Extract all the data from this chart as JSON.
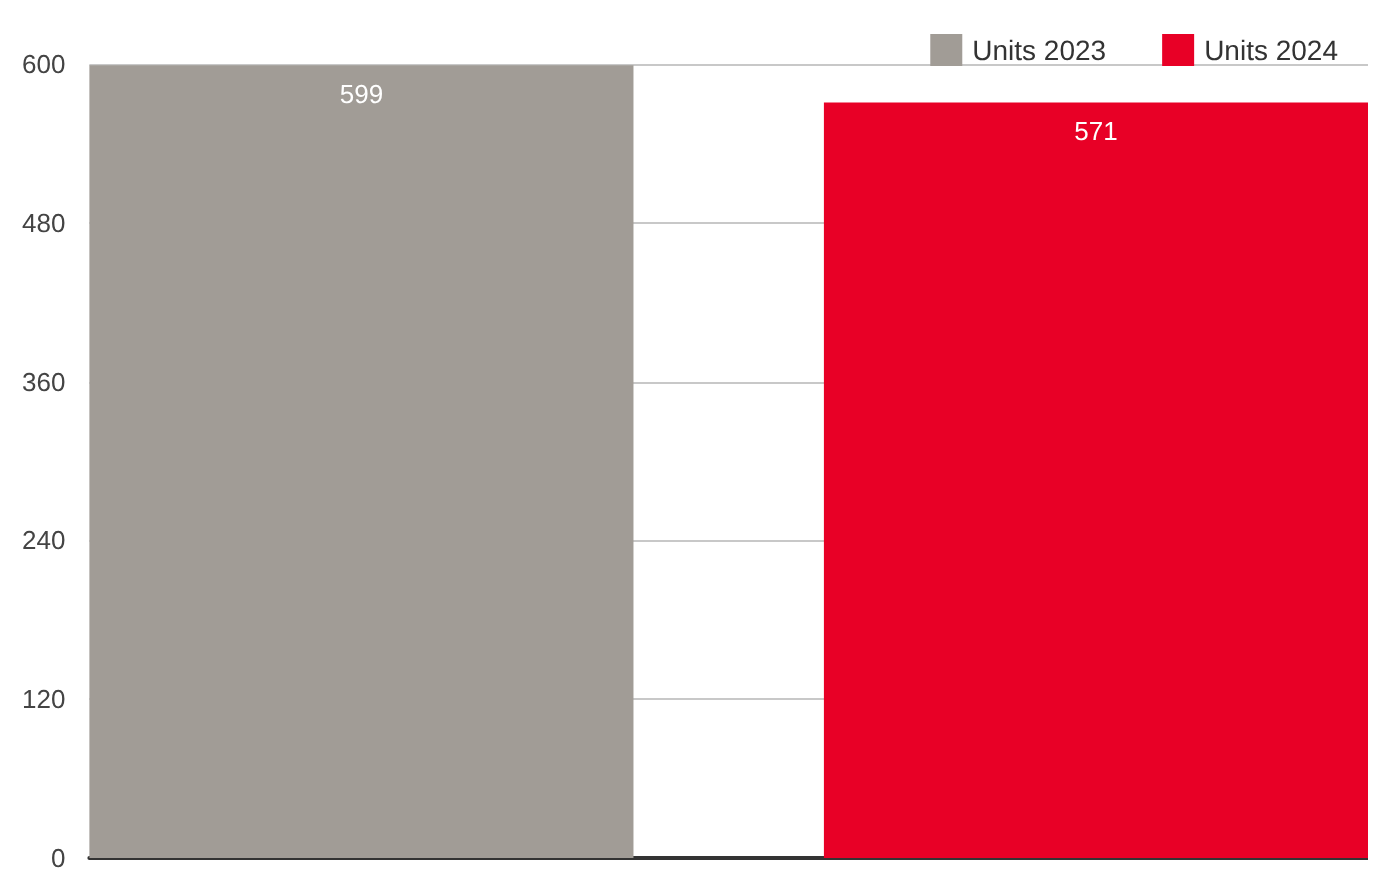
{
  "chart_data": {
    "type": "bar",
    "categories": [
      null
    ],
    "series": [
      {
        "name": "Units 2023",
        "color": "#a19c96",
        "values": [
          599
        ]
      },
      {
        "name": "Units 2024",
        "color": "#e80026",
        "values": [
          571
        ]
      }
    ],
    "ylim": [
      0,
      600
    ],
    "yticks": [
      0,
      120,
      240,
      360,
      480,
      600
    ],
    "grid": "y",
    "legend": "top right",
    "data_labels": true
  }
}
